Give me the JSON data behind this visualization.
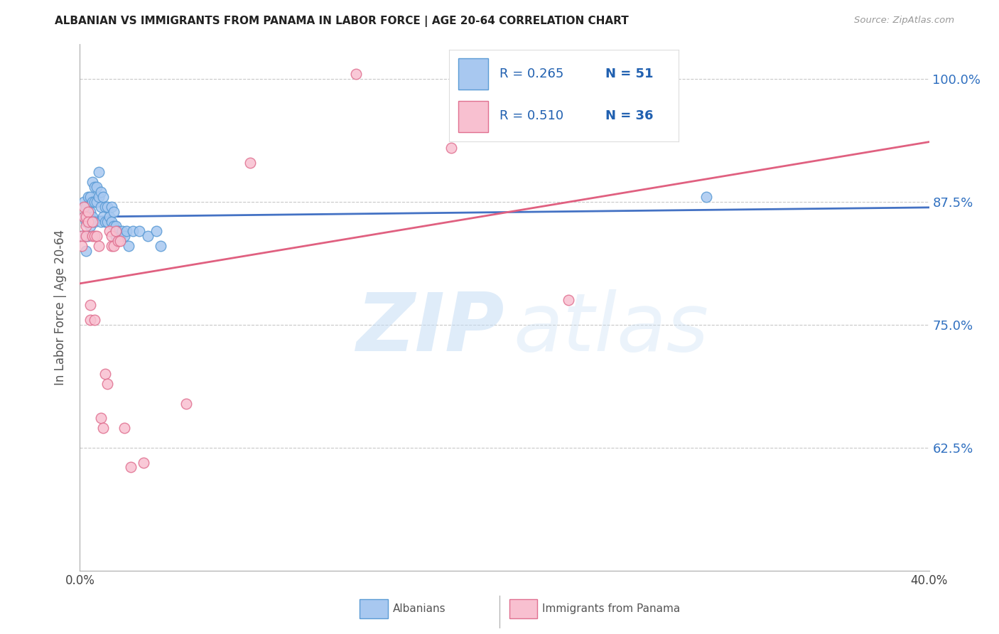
{
  "title": "ALBANIAN VS IMMIGRANTS FROM PANAMA IN LABOR FORCE | AGE 20-64 CORRELATION CHART",
  "source": "Source: ZipAtlas.com",
  "ylabel": "In Labor Force | Age 20-64",
  "xlim": [
    0.0,
    0.4
  ],
  "ylim": [
    0.5,
    1.035
  ],
  "xtick_positions": [
    0.0,
    0.05,
    0.1,
    0.15,
    0.2,
    0.25,
    0.3,
    0.35,
    0.4
  ],
  "xtick_labels": [
    "0.0%",
    "",
    "",
    "",
    "",
    "",
    "",
    "",
    "40.0%"
  ],
  "ytick_positions": [
    0.625,
    0.75,
    0.875,
    1.0
  ],
  "ytick_labels": [
    "62.5%",
    "75.0%",
    "87.5%",
    "100.0%"
  ],
  "color_albanian_fill": "#a8c8f0",
  "color_albanian_edge": "#5b9bd5",
  "color_panama_fill": "#f8c0d0",
  "color_panama_edge": "#e07090",
  "color_line_albanian": "#4472c4",
  "color_line_panama": "#e06080",
  "albanian_x": [
    0.001,
    0.002,
    0.002,
    0.003,
    0.003,
    0.003,
    0.003,
    0.004,
    0.004,
    0.004,
    0.005,
    0.005,
    0.005,
    0.006,
    0.006,
    0.006,
    0.007,
    0.007,
    0.007,
    0.008,
    0.008,
    0.009,
    0.009,
    0.01,
    0.01,
    0.01,
    0.011,
    0.011,
    0.012,
    0.012,
    0.013,
    0.013,
    0.014,
    0.015,
    0.015,
    0.016,
    0.016,
    0.017,
    0.017,
    0.018,
    0.019,
    0.02,
    0.021,
    0.022,
    0.023,
    0.025,
    0.028,
    0.032,
    0.036,
    0.038,
    0.295
  ],
  "albanian_y": [
    0.84,
    0.875,
    0.86,
    0.87,
    0.855,
    0.84,
    0.825,
    0.88,
    0.86,
    0.84,
    0.88,
    0.865,
    0.85,
    0.895,
    0.875,
    0.86,
    0.89,
    0.875,
    0.855,
    0.89,
    0.875,
    0.905,
    0.88,
    0.885,
    0.87,
    0.855,
    0.88,
    0.86,
    0.87,
    0.855,
    0.87,
    0.855,
    0.86,
    0.87,
    0.855,
    0.865,
    0.85,
    0.85,
    0.84,
    0.845,
    0.84,
    0.845,
    0.84,
    0.845,
    0.83,
    0.845,
    0.845,
    0.84,
    0.845,
    0.83,
    0.88
  ],
  "panama_x": [
    0.001,
    0.001,
    0.002,
    0.002,
    0.003,
    0.003,
    0.003,
    0.004,
    0.004,
    0.005,
    0.005,
    0.006,
    0.006,
    0.007,
    0.007,
    0.008,
    0.009,
    0.01,
    0.011,
    0.012,
    0.013,
    0.014,
    0.015,
    0.015,
    0.016,
    0.017,
    0.018,
    0.019,
    0.021,
    0.024,
    0.03,
    0.05,
    0.13,
    0.175,
    0.23,
    0.08
  ],
  "panama_y": [
    0.84,
    0.83,
    0.87,
    0.86,
    0.86,
    0.85,
    0.84,
    0.865,
    0.855,
    0.77,
    0.755,
    0.855,
    0.84,
    0.84,
    0.755,
    0.84,
    0.83,
    0.655,
    0.645,
    0.7,
    0.69,
    0.845,
    0.84,
    0.83,
    0.83,
    0.845,
    0.835,
    0.835,
    0.645,
    0.605,
    0.61,
    0.67,
    1.005,
    0.93,
    0.775,
    0.915
  ],
  "legend_items": [
    {
      "r": "R = 0.265",
      "n": "N = 51",
      "fill": "#a8c8f0",
      "edge": "#5b9bd5"
    },
    {
      "r": "R = 0.510",
      "n": "N = 36",
      "fill": "#f8c0d0",
      "edge": "#e07090"
    }
  ]
}
